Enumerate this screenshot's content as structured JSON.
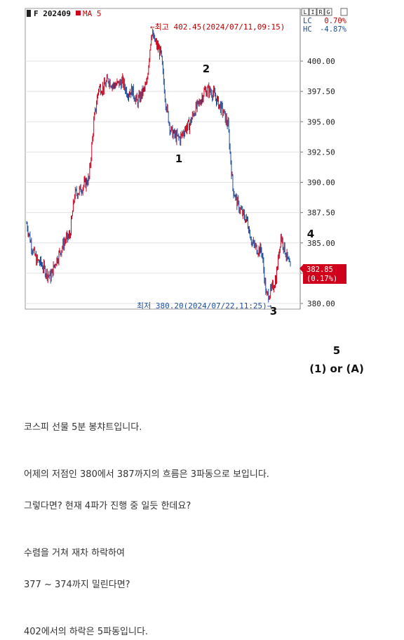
{
  "chart_header": {
    "symbol": "F 202409",
    "indicator": "MA 5",
    "buttons": [
      "L",
      "I",
      "R",
      "G"
    ],
    "lc": {
      "label": "LC",
      "value": "0.70%"
    },
    "hc": {
      "label": "HC",
      "value": "-4.87%"
    }
  },
  "annotations": {
    "high": "←최고 402.45(2024/07/11,09:15)",
    "low": "최저 380.20(2024/07/22,11:25)→",
    "last_price": "382.85",
    "last_change": "(0.17%)"
  },
  "wave_labels": [
    "1",
    "2",
    "3",
    "4"
  ],
  "wave5": {
    "label": "5",
    "alt": "(1) or (A)"
  },
  "colors": {
    "up": "#d0021b",
    "down": "#1f4e9a",
    "accent_red": "#c00000",
    "blue_text": "#1f4e9a"
  },
  "chart_data": {
    "type": "line",
    "title": "",
    "xlabel": "",
    "ylabel": "",
    "ylim": [
      379.5,
      403.5
    ],
    "yticks": [
      "400.00",
      "397.50",
      "395.00",
      "392.50",
      "390.00",
      "387.50",
      "385.00",
      "382.50",
      "380.00"
    ],
    "grid": true,
    "series": [
      {
        "name": "MA 5",
        "values": [
          386.6,
          384.8,
          383.6,
          383.3,
          382.6,
          382.2,
          383.4,
          384.3,
          385.2,
          385.6,
          389.0,
          389.3,
          389.8,
          390.3,
          394.9,
          397.8,
          397.8,
          398.5,
          398.0,
          398.1,
          398.3,
          397.4,
          397.6,
          396.6,
          397.3,
          398.0,
          402.3,
          401.4,
          400.6,
          396.6,
          394.3,
          393.8,
          393.6,
          394.4,
          394.8,
          395.9,
          396.5,
          397.5,
          397.6,
          397.3,
          396.5,
          395.8,
          394.7,
          389.5,
          388.2,
          387.4,
          386.8,
          385.0,
          384.5,
          384.4,
          380.6,
          381.0,
          382.1,
          385.6,
          384.2,
          382.8
        ]
      }
    ]
  },
  "post": {
    "lines": [
      "코스피 선물 5분 봉챠트입니다.",
      "어제의 저점인 380에서 387까지의 흐름은 3파동으로 보입니다.",
      "그렇다면? 현재 4파가 진행 중 일듯 한데요?",
      "수렴을 거쳐 재차 하락하여",
      "377 ~ 374까지 밀린다면?",
      "402에서의 하락은 5파동입니다."
    ]
  }
}
